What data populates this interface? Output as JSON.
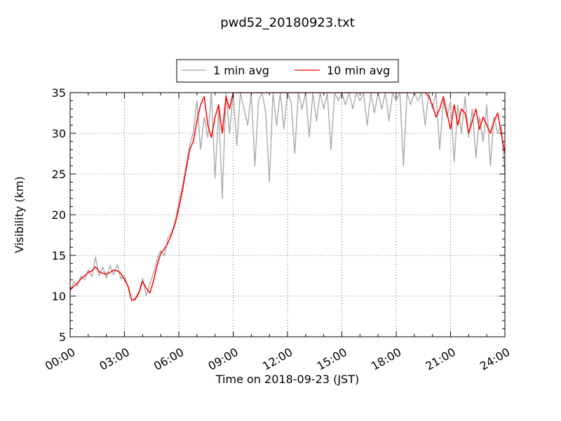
{
  "chart_data": {
    "type": "line",
    "title": "pwd52_20180923.txt",
    "xlabel": "Time on 2018-09-23 (JST)",
    "ylabel": "Visibility (km)",
    "xlim": [
      0,
      24
    ],
    "ylim": [
      5,
      35
    ],
    "xticks": [
      0,
      3,
      6,
      9,
      12,
      15,
      18,
      21,
      24
    ],
    "xtick_labels": [
      "00:00",
      "03:00",
      "06:00",
      "09:00",
      "12:00",
      "15:00",
      "18:00",
      "21:00",
      "24:00"
    ],
    "yticks": [
      5,
      10,
      15,
      20,
      25,
      30,
      35
    ],
    "ytick_labels": [
      "5",
      "10",
      "15",
      "20",
      "25",
      "30",
      "35"
    ],
    "grid": true,
    "legend_position": "top-center",
    "series": [
      {
        "name": "1 min avg",
        "color": "#aaaaaa",
        "x": [
          0.0,
          0.2,
          0.4,
          0.6,
          0.8,
          1.0,
          1.2,
          1.4,
          1.6,
          1.8,
          2.0,
          2.2,
          2.4,
          2.6,
          2.8,
          3.0,
          3.2,
          3.4,
          3.6,
          3.8,
          4.0,
          4.2,
          4.4,
          4.6,
          4.8,
          5.0,
          5.2,
          5.4,
          5.6,
          5.8,
          6.0,
          6.2,
          6.4,
          6.6,
          6.8,
          7.0,
          7.2,
          7.4,
          7.6,
          7.8,
          8.0,
          8.2,
          8.4,
          8.6,
          8.8,
          9.0,
          9.2,
          9.4,
          9.6,
          9.8,
          10.0,
          10.2,
          10.4,
          10.6,
          10.8,
          11.0,
          11.2,
          11.4,
          11.6,
          11.8,
          12.0,
          12.2,
          12.4,
          12.6,
          12.8,
          13.0,
          13.2,
          13.4,
          13.6,
          13.8,
          14.0,
          14.2,
          14.4,
          14.6,
          14.8,
          15.0,
          15.2,
          15.4,
          15.6,
          15.8,
          16.0,
          16.2,
          16.4,
          16.6,
          16.8,
          17.0,
          17.2,
          17.4,
          17.6,
          17.8,
          18.0,
          18.2,
          18.4,
          18.6,
          18.8,
          19.0,
          19.2,
          19.4,
          19.6,
          19.8,
          20.0,
          20.2,
          20.4,
          20.6,
          20.8,
          21.0,
          21.2,
          21.4,
          21.6,
          21.8,
          22.0,
          22.2,
          22.4,
          22.6,
          22.8,
          23.0,
          23.2,
          23.4,
          23.6,
          23.8,
          24.0
        ],
        "values": [
          10.5,
          11.8,
          11.2,
          12.5,
          12.0,
          13.2,
          12.4,
          14.8,
          12.5,
          13.6,
          12.2,
          13.8,
          12.6,
          13.9,
          12.1,
          12.6,
          11.0,
          9.4,
          9.8,
          10.5,
          12.2,
          10.0,
          11.5,
          12.8,
          14.5,
          15.6,
          15.0,
          17.2,
          17.8,
          19.2,
          21.5,
          23.5,
          26.0,
          28.5,
          30.2,
          34.0,
          28.0,
          32.0,
          29.5,
          35.0,
          24.5,
          33.0,
          22.0,
          35.0,
          30.0,
          35.0,
          28.5,
          35.0,
          33.0,
          31.0,
          35.0,
          26.0,
          34.0,
          35.0,
          32.5,
          24.0,
          35.0,
          31.0,
          35.0,
          30.5,
          35.0,
          33.8,
          27.5,
          35.0,
          33.0,
          35.0,
          29.5,
          35.0,
          31.5,
          35.0,
          33.0,
          35.0,
          28.0,
          35.0,
          34.0,
          35.0,
          33.5,
          35.0,
          33.0,
          35.0,
          34.0,
          35.0,
          31.0,
          35.0,
          32.5,
          35.0,
          33.0,
          35.0,
          31.5,
          35.0,
          34.0,
          35.0,
          26.0,
          35.0,
          33.5,
          35.0,
          34.0,
          35.0,
          31.0,
          35.0,
          33.0,
          35.0,
          28.0,
          34.0,
          32.0,
          34.0,
          26.5,
          33.5,
          30.0,
          34.5,
          29.5,
          33.0,
          27.0,
          32.0,
          29.0,
          33.5,
          26.0,
          32.0,
          30.0,
          31.0,
          25.0
        ]
      },
      {
        "name": "10 min avg",
        "color": "#ff0000",
        "x": [
          0.0,
          0.2,
          0.4,
          0.6,
          0.8,
          1.0,
          1.2,
          1.4,
          1.6,
          1.8,
          2.0,
          2.2,
          2.4,
          2.6,
          2.8,
          3.0,
          3.2,
          3.4,
          3.6,
          3.8,
          4.0,
          4.2,
          4.4,
          4.6,
          4.8,
          5.0,
          5.2,
          5.4,
          5.6,
          5.8,
          6.0,
          6.2,
          6.4,
          6.6,
          6.8,
          7.0,
          7.2,
          7.4,
          7.6,
          7.8,
          8.0,
          8.2,
          8.4,
          8.6,
          8.8,
          9.0,
          19.6,
          19.8,
          20.0,
          20.2,
          20.4,
          20.6,
          20.8,
          21.0,
          21.2,
          21.4,
          21.6,
          21.8,
          22.0,
          22.2,
          22.4,
          22.6,
          22.8,
          23.0,
          23.2,
          23.4,
          23.6,
          23.8,
          24.0
        ],
        "values": [
          10.8,
          11.2,
          11.6,
          12.1,
          12.5,
          12.9,
          13.1,
          13.6,
          13.0,
          12.8,
          12.7,
          12.9,
          13.2,
          13.1,
          12.8,
          12.0,
          11.2,
          9.5,
          9.6,
          10.4,
          11.8,
          11.0,
          10.4,
          11.8,
          13.8,
          15.2,
          15.8,
          16.5,
          17.6,
          18.9,
          20.8,
          23.0,
          25.5,
          28.0,
          29.0,
          31.5,
          33.5,
          34.5,
          31.0,
          29.5,
          32.0,
          33.5,
          30.0,
          34.5,
          33.0,
          35.0,
          35.0,
          34.5,
          33.5,
          32.0,
          33.0,
          34.5,
          32.5,
          30.5,
          33.5,
          31.0,
          33.0,
          32.5,
          30.0,
          31.5,
          33.0,
          30.5,
          32.0,
          31.0,
          30.0,
          31.5,
          32.5,
          30.0,
          27.5
        ]
      }
    ]
  }
}
